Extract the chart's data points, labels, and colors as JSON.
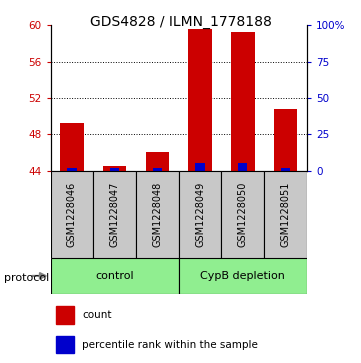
{
  "title": "GDS4828 / ILMN_1778188",
  "samples": [
    "GSM1228046",
    "GSM1228047",
    "GSM1228048",
    "GSM1228049",
    "GSM1228050",
    "GSM1228051"
  ],
  "red_values": [
    49.3,
    44.5,
    46.0,
    59.6,
    59.3,
    50.8
  ],
  "blue_percentiles": [
    2.0,
    1.5,
    1.5,
    5.0,
    5.0,
    2.0
  ],
  "baseline": 44.0,
  "ylim_left": [
    44,
    60
  ],
  "ylim_right": [
    0,
    100
  ],
  "yticks_left": [
    44,
    48,
    52,
    56,
    60
  ],
  "yticks_right": [
    0,
    25,
    50,
    75,
    100
  ],
  "ytick_labels_right": [
    "0",
    "25",
    "50",
    "75",
    "100%"
  ],
  "grid_lines": [
    48,
    52,
    56
  ],
  "red_color": "#CC0000",
  "blue_color": "#0000CC",
  "bar_width": 0.55,
  "blue_bar_width": 0.22,
  "bg_color": "#C8C8C8",
  "group_box_color": "#90EE90",
  "left_tick_color": "#CC0000",
  "right_tick_color": "#0000CC",
  "control_label": "control",
  "cypb_label": "CypB depletion",
  "protocol_label": "protocol",
  "legend_count": "count",
  "legend_pct": "percentile rank within the sample",
  "title_fontsize": 10,
  "tick_fontsize": 7.5,
  "label_fontsize": 7,
  "group_fontsize": 8,
  "legend_fontsize": 7.5,
  "protocol_fontsize": 8
}
